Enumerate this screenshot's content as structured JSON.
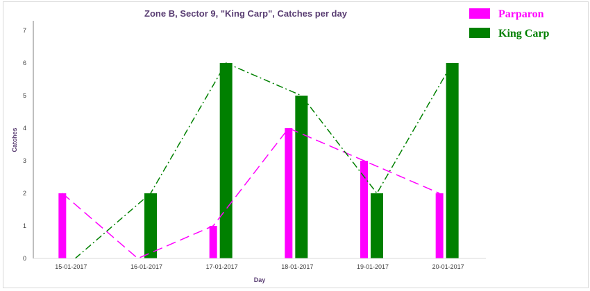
{
  "chart_data": {
    "type": "bar",
    "title": "Zone B,  Sector 9, \"King Carp\", Catches per day",
    "xlabel": "Day",
    "ylabel": "Catches",
    "ylim": [
      0,
      7
    ],
    "yticks": [
      "0",
      "1",
      "2",
      "3",
      "4",
      "5",
      "6",
      "7"
    ],
    "categories": [
      "15-01-2017",
      "16-01-2017",
      "17-01-2017",
      "18-01-2017",
      "19-01-2017",
      "20-01-2017"
    ],
    "series": [
      {
        "name": "Parparon",
        "values": [
          2,
          0,
          1,
          4,
          3,
          2
        ],
        "color": "#ff00ff",
        "line_style": "dashed"
      },
      {
        "name": "King Carp",
        "values": [
          0,
          2,
          6,
          5,
          2,
          6
        ],
        "color": "#008000",
        "line_style": "dash-dot"
      }
    ],
    "grid": false,
    "legend_position": "top-right",
    "overlay": "each series drawn both as bars and as a connecting line"
  }
}
